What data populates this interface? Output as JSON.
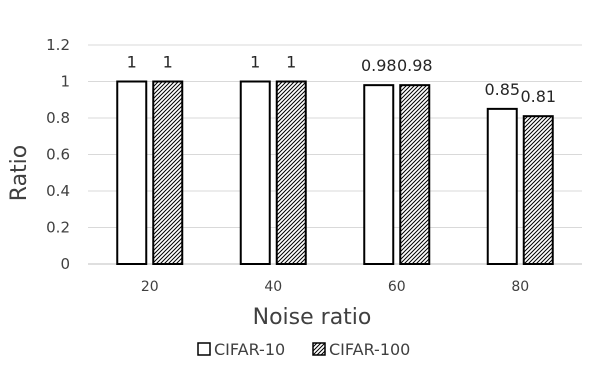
{
  "chart_data": {
    "type": "bar",
    "categories": [
      "20",
      "40",
      "60",
      "80"
    ],
    "series": [
      {
        "name": "CIFAR-10",
        "values": [
          1,
          1,
          0.98,
          0.85
        ],
        "labels": [
          "1",
          "1",
          "0.98",
          "0.85"
        ],
        "pattern": "solid-white"
      },
      {
        "name": "CIFAR-100",
        "values": [
          1,
          1,
          0.98,
          0.81
        ],
        "labels": [
          "1",
          "1",
          "0.98",
          "0.81"
        ],
        "pattern": "diagonal-hatch"
      }
    ],
    "title": "",
    "xlabel": "Noise ratio",
    "ylabel": "Ratio",
    "ylim": [
      0,
      1.2
    ],
    "yticks": [
      0,
      0.2,
      0.4,
      0.6,
      0.8,
      1,
      1.2
    ],
    "ytick_labels": [
      "0",
      "0.2",
      "0.4",
      "0.6",
      "0.8",
      "1",
      "1.2"
    ],
    "grid": true,
    "legend_position": "bottom"
  }
}
